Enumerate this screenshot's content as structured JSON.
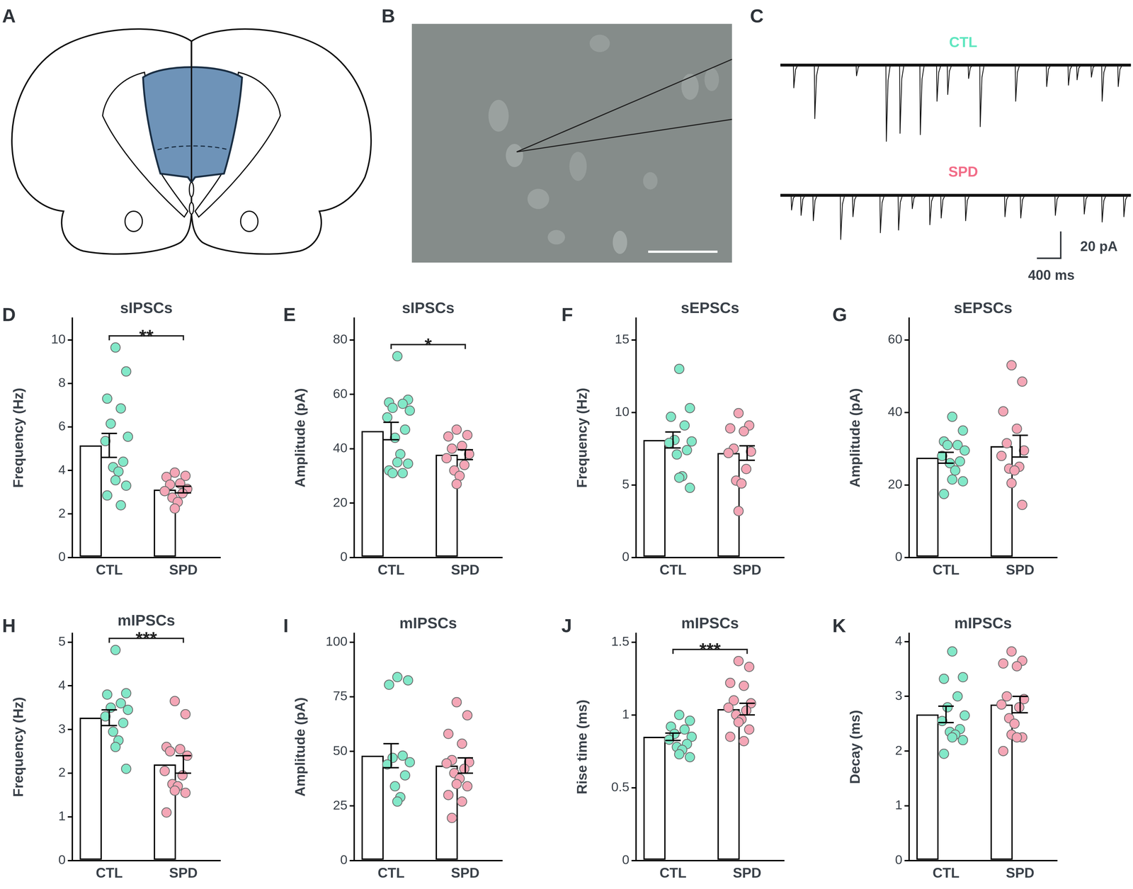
{
  "diagram_A": {
    "label": "A"
  },
  "image_B": {
    "label": "B"
  },
  "traces_C": {
    "label": "C",
    "duration_ms": 5880,
    "traces": [
      {
        "name": "CTL",
        "color": "#5fe6bf",
        "events": [
          {
            "t": 218,
            "amp": 17
          },
          {
            "t": 570,
            "amp": 40
          },
          {
            "t": 1270,
            "amp": 8
          },
          {
            "t": 1770,
            "amp": 57
          },
          {
            "t": 2000,
            "amp": 51
          },
          {
            "t": 2340,
            "amp": 52
          },
          {
            "t": 2620,
            "amp": 27
          },
          {
            "t": 2800,
            "amp": 22
          },
          {
            "t": 3150,
            "amp": 10
          },
          {
            "t": 3345,
            "amp": 46
          },
          {
            "t": 3940,
            "amp": 27
          },
          {
            "t": 4460,
            "amp": 16
          },
          {
            "t": 4825,
            "amp": 15
          },
          {
            "t": 4970,
            "amp": 11
          },
          {
            "t": 5210,
            "amp": 9
          },
          {
            "t": 5390,
            "amp": 27
          },
          {
            "t": 5660,
            "amp": 16
          }
        ]
      },
      {
        "name": "SPD",
        "color": "#f26d88",
        "events": [
          {
            "t": 180,
            "amp": 11
          },
          {
            "t": 340,
            "amp": 15
          },
          {
            "t": 545,
            "amp": 19
          },
          {
            "t": 1005,
            "amp": 33
          },
          {
            "t": 1210,
            "amp": 16
          },
          {
            "t": 1670,
            "amp": 28
          },
          {
            "t": 1975,
            "amp": 26
          },
          {
            "t": 2205,
            "amp": 10
          },
          {
            "t": 2500,
            "amp": 22
          },
          {
            "t": 2690,
            "amp": 17
          },
          {
            "t": 3100,
            "amp": 19
          },
          {
            "t": 3760,
            "amp": 16
          },
          {
            "t": 4025,
            "amp": 17
          },
          {
            "t": 4605,
            "amp": 15
          },
          {
            "t": 5090,
            "amp": 14
          },
          {
            "t": 5390,
            "amp": 20
          },
          {
            "t": 5755,
            "amp": 16
          }
        ]
      }
    ],
    "scale_bar": {
      "y": 20,
      "y_label": "20 pA",
      "x": 400,
      "x_label": "400 ms"
    }
  },
  "chart_data": [
    {
      "type": "bar",
      "panel_label": "D",
      "title": "sIPSCs",
      "y_label": "Frequency (Hz)",
      "categories": [
        "CTL",
        "SPD"
      ],
      "values": [
        5.15,
        3.12
      ],
      "errors": [
        0.55,
        0.15
      ],
      "color": "#ffffff",
      "grid": false,
      "points": [
        {
          "name": "CTL",
          "type": "scatter",
          "color": "#82e8c8",
          "values": [
            9.65,
            8.55,
            7.3,
            6.85,
            6.15,
            5.55,
            5.35,
            4.4,
            4.15,
            3.95,
            3.55,
            3.3,
            2.85,
            2.4
          ]
        },
        {
          "name": "SPD",
          "type": "scatter",
          "color": "#f4a6b6",
          "values": [
            3.9,
            3.75,
            3.7,
            3.4,
            3.35,
            3.15,
            3.05,
            2.95,
            2.75,
            2.55,
            2.25
          ]
        }
      ],
      "ylim": [
        0,
        11
      ],
      "yticks": [
        0,
        2,
        4,
        6,
        8,
        10
      ],
      "annotations": [
        {
          "text": "**",
          "between": [
            "CTL",
            "SPD"
          ]
        }
      ]
    },
    {
      "type": "bar",
      "panel_label": "E",
      "title": "sIPSCs",
      "y_label": "Amplitude (pA)",
      "categories": [
        "CTL",
        "SPD"
      ],
      "values": [
        46.5,
        37.8
      ],
      "errors": [
        3.2,
        1.8
      ],
      "color": "#ffffff",
      "grid": false,
      "points": [
        {
          "name": "CTL",
          "type": "scatter",
          "color": "#82e8c8",
          "values": [
            74,
            58,
            57,
            56.5,
            55,
            54,
            51.5,
            47,
            44,
            38,
            35,
            34.5,
            32,
            31,
            31
          ]
        },
        {
          "name": "SPD",
          "type": "scatter",
          "color": "#f4a6b6",
          "values": [
            47,
            45,
            44.5,
            41,
            40,
            38,
            36.5,
            34,
            32,
            30,
            27
          ]
        }
      ],
      "ylim": [
        0,
        88
      ],
      "yticks": [
        0,
        20,
        40,
        60,
        80
      ],
      "annotations": [
        {
          "text": "*",
          "between": [
            "CTL",
            "SPD"
          ]
        }
      ]
    },
    {
      "type": "bar",
      "panel_label": "F",
      "title": "sEPSCs",
      "y_label": "Frequency (Hz)",
      "categories": [
        "CTL",
        "SPD"
      ],
      "values": [
        8.1,
        7.2
      ],
      "errors": [
        0.55,
        0.5
      ],
      "color": "#ffffff",
      "grid": false,
      "points": [
        {
          "name": "CTL",
          "type": "scatter",
          "color": "#82e8c8",
          "values": [
            13,
            10.3,
            9.7,
            9.1,
            8.1,
            8.0,
            7.9,
            7.4,
            7.1,
            5.6,
            5.5,
            4.8
          ]
        },
        {
          "name": "SPD",
          "type": "scatter",
          "color": "#f4a6b6",
          "values": [
            9.95,
            9.1,
            8.9,
            8.7,
            7.5,
            7.3,
            7.2,
            6.1,
            5.3,
            5.1,
            3.2
          ]
        }
      ],
      "ylim": [
        0,
        16.5
      ],
      "yticks": [
        0,
        5,
        10,
        15
      ]
    },
    {
      "type": "bar",
      "panel_label": "G",
      "title": "sEPSCs",
      "y_label": "Amplitude (pA)",
      "categories": [
        "CTL",
        "SPD"
      ],
      "values": [
        27.5,
        30.7
      ],
      "errors": [
        1.5,
        3
      ],
      "color": "#ffffff",
      "grid": false,
      "points": [
        {
          "name": "CTL",
          "type": "scatter",
          "color": "#82e8c8",
          "values": [
            38.8,
            35,
            32,
            31,
            31,
            29.5,
            28,
            26.5,
            26,
            24,
            21.5,
            21,
            17.5
          ]
        },
        {
          "name": "SPD",
          "type": "scatter",
          "color": "#f4a6b6",
          "values": [
            53,
            48.5,
            40.3,
            35.5,
            31.5,
            29.5,
            28,
            25,
            24.5,
            24,
            20.5,
            14.5
          ]
        }
      ],
      "ylim": [
        0,
        66
      ],
      "yticks": [
        0,
        20,
        40,
        60
      ]
    },
    {
      "type": "bar",
      "panel_label": "H",
      "title": "mIPSCs",
      "y_label": "Frequency (Hz)",
      "categories": [
        "CTL",
        "SPD"
      ],
      "values": [
        3.27,
        2.2
      ],
      "errors": [
        0.18,
        0.2
      ],
      "color": "#ffffff",
      "grid": false,
      "points": [
        {
          "name": "CTL",
          "type": "scatter",
          "color": "#82e8c8",
          "values": [
            4.82,
            3.83,
            3.8,
            3.6,
            3.5,
            3.45,
            3.3,
            3.15,
            2.95,
            2.75,
            2.6,
            2.1
          ]
        },
        {
          "name": "SPD",
          "type": "scatter",
          "color": "#f4a6b6",
          "values": [
            3.65,
            3.35,
            2.6,
            2.55,
            2.5,
            2.4,
            2.05,
            1.95,
            1.75,
            1.7,
            1.6,
            1.55,
            1.1
          ]
        }
      ],
      "ylim": [
        0,
        5.2
      ],
      "yticks": [
        0,
        1,
        2,
        3,
        4,
        5
      ],
      "annotations": [
        {
          "text": "***",
          "between": [
            "CTL",
            "SPD"
          ]
        }
      ]
    },
    {
      "type": "bar",
      "panel_label": "I",
      "title": "mIPSCs",
      "y_label": "Amplitude (pA)",
      "categories": [
        "CTL",
        "SPD"
      ],
      "values": [
        48,
        43.5
      ],
      "errors": [
        5.5,
        3.5
      ],
      "color": "#ffffff",
      "grid": false,
      "points": [
        {
          "name": "CTL",
          "type": "scatter",
          "color": "#82e8c8",
          "values": [
            84,
            82.5,
            80.5,
            48,
            47,
            45,
            44,
            39,
            34,
            29,
            27
          ]
        },
        {
          "name": "SPD",
          "type": "scatter",
          "color": "#f4a6b6",
          "values": [
            72.5,
            66.5,
            58,
            53.5,
            46,
            45,
            44.5,
            42,
            40,
            37.5,
            35,
            34,
            30,
            27,
            19.5
          ]
        }
      ],
      "ylim": [
        0,
        104
      ],
      "yticks": [
        0,
        25,
        50,
        75,
        100
      ]
    },
    {
      "type": "bar",
      "panel_label": "J",
      "title": "mIPSCs",
      "y_label": "Rise time (ms)",
      "categories": [
        "CTL",
        "SPD"
      ],
      "values": [
        0.85,
        1.04
      ],
      "errors": [
        0.025,
        0.04
      ],
      "color": "#ffffff",
      "grid": false,
      "points": [
        {
          "name": "CTL",
          "type": "scatter",
          "color": "#82e8c8",
          "values": [
            1.0,
            0.96,
            0.92,
            0.9,
            0.87,
            0.85,
            0.83,
            0.8,
            0.78,
            0.76,
            0.73,
            0.71
          ]
        },
        {
          "name": "SPD",
          "type": "scatter",
          "color": "#f4a6b6",
          "values": [
            1.37,
            1.33,
            1.22,
            1.2,
            1.1,
            1.08,
            1.05,
            1.03,
            1.0,
            0.97,
            0.95,
            0.9,
            0.85,
            0.82
          ]
        }
      ],
      "ylim": [
        0,
        1.56
      ],
      "yticks": [
        0,
        0.5,
        1,
        1.5
      ],
      "annotations": [
        {
          "text": "***",
          "between": [
            "CTL",
            "SPD"
          ]
        }
      ]
    },
    {
      "type": "bar",
      "panel_label": "K",
      "title": "mIPSCs",
      "y_label": "Decay (ms)",
      "categories": [
        "CTL",
        "SPD"
      ],
      "values": [
        2.67,
        2.85
      ],
      "errors": [
        0.15,
        0.15
      ],
      "color": "#ffffff",
      "grid": false,
      "points": [
        {
          "name": "CTL",
          "type": "scatter",
          "color": "#82e8c8",
          "values": [
            3.82,
            3.35,
            3.32,
            3.0,
            2.8,
            2.65,
            2.55,
            2.4,
            2.35,
            2.3,
            2.25,
            2.2,
            1.95
          ]
        },
        {
          "name": "SPD",
          "type": "scatter",
          "color": "#f4a6b6",
          "values": [
            3.82,
            3.65,
            3.6,
            3.55,
            3.0,
            2.95,
            2.85,
            2.8,
            2.6,
            2.5,
            2.3,
            2.25,
            2.0,
            2.25
          ]
        }
      ],
      "ylim": [
        0,
        4.15
      ],
      "yticks": [
        0,
        1,
        2,
        3,
        4
      ]
    }
  ]
}
